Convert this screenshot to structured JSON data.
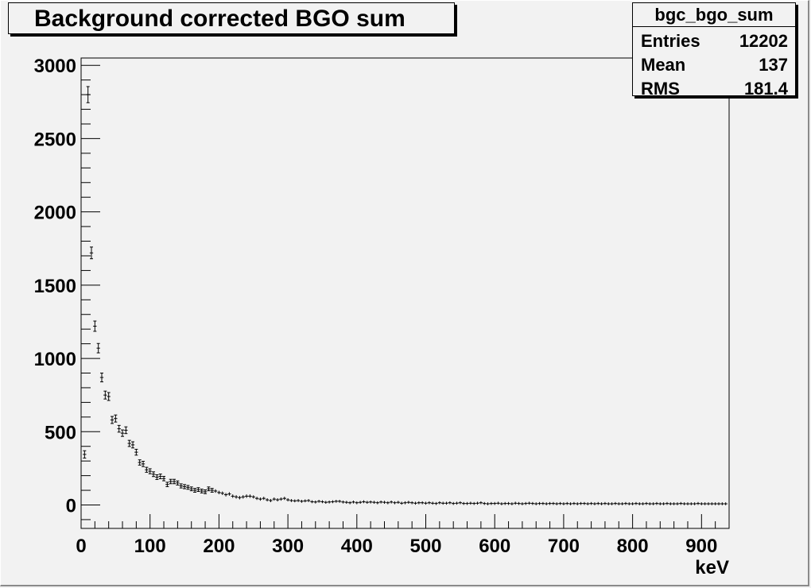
{
  "title": "Background corrected BGO sum",
  "stats": {
    "name": "bgc_bgo_sum",
    "rows": [
      {
        "key": "Entries",
        "value": "12202"
      },
      {
        "key": "Mean",
        "value": "137"
      },
      {
        "key": "RMS",
        "value": "181.4"
      }
    ]
  },
  "chart_data": {
    "type": "scatter",
    "title": "Background corrected BGO sum",
    "xlabel": "keV",
    "ylabel": "",
    "xlim": [
      0,
      940
    ],
    "ylim": [
      -160,
      3050
    ],
    "xticks": [
      0,
      100,
      200,
      300,
      400,
      500,
      600,
      700,
      800,
      900
    ],
    "yticks": [
      0,
      500,
      1000,
      1500,
      2000,
      2500,
      3000
    ],
    "xtick_labels": [
      "0",
      "100",
      "200",
      "300",
      "400",
      "500",
      "600",
      "700",
      "800",
      "900"
    ],
    "ytick_labels": [
      "0",
      "500",
      "1000",
      "1500",
      "2000",
      "2500",
      "3000"
    ],
    "grid": false,
    "bin_width": 5,
    "x": [
      5,
      10,
      15,
      20,
      25,
      30,
      35,
      40,
      45,
      50,
      55,
      60,
      65,
      70,
      75,
      80,
      85,
      90,
      95,
      100,
      105,
      110,
      115,
      120,
      125,
      130,
      135,
      140,
      145,
      150,
      155,
      160,
      165,
      170,
      175,
      180,
      185,
      190,
      195,
      200,
      205,
      210,
      215,
      220,
      225,
      230,
      235,
      240,
      245,
      250,
      255,
      260,
      265,
      270,
      275,
      280,
      285,
      290,
      295,
      300,
      305,
      310,
      315,
      320,
      325,
      330,
      335,
      340,
      345,
      350,
      355,
      360,
      365,
      370,
      375,
      380,
      385,
      390,
      395,
      400,
      405,
      410,
      415,
      420,
      425,
      430,
      435,
      440,
      445,
      450,
      455,
      460,
      465,
      470,
      475,
      480,
      485,
      490,
      495,
      500,
      505,
      510,
      515,
      520,
      525,
      530,
      535,
      540,
      545,
      550,
      555,
      560,
      565,
      570,
      575,
      580,
      585,
      590,
      595,
      600,
      605,
      610,
      615,
      620,
      625,
      630,
      635,
      640,
      645,
      650,
      655,
      660,
      665,
      670,
      675,
      680,
      685,
      690,
      695,
      700,
      705,
      710,
      715,
      720,
      725,
      730,
      735,
      740,
      745,
      750,
      755,
      760,
      765,
      770,
      775,
      780,
      785,
      790,
      795,
      800,
      805,
      810,
      815,
      820,
      825,
      830,
      835,
      840,
      845,
      850,
      855,
      860,
      865,
      870,
      875,
      880,
      885,
      890,
      895,
      900,
      905,
      910,
      915,
      920,
      925,
      930,
      935
    ],
    "y": [
      345,
      2800,
      1720,
      1220,
      1070,
      870,
      750,
      740,
      580,
      590,
      520,
      490,
      510,
      420,
      410,
      360,
      290,
      280,
      240,
      230,
      210,
      190,
      195,
      180,
      140,
      160,
      160,
      150,
      130,
      125,
      120,
      110,
      100,
      105,
      95,
      90,
      110,
      100,
      95,
      85,
      80,
      70,
      75,
      60,
      55,
      50,
      55,
      60,
      60,
      55,
      45,
      40,
      45,
      35,
      30,
      40,
      35,
      40,
      45,
      35,
      30,
      28,
      30,
      25,
      28,
      30,
      22,
      20,
      25,
      22,
      18,
      20,
      22,
      25,
      25,
      20,
      18,
      15,
      20,
      15,
      18,
      22,
      18,
      20,
      18,
      15,
      20,
      18,
      15,
      20,
      15,
      18,
      12,
      15,
      18,
      15,
      12,
      15,
      15,
      12,
      15,
      12,
      10,
      15,
      12,
      12,
      15,
      10,
      12,
      15,
      10,
      10,
      12,
      10,
      12,
      15,
      10,
      8,
      10,
      10,
      12,
      8,
      10,
      10,
      8,
      12,
      10,
      8,
      10,
      12,
      10,
      8,
      10,
      10,
      8,
      10,
      10,
      8,
      10,
      8,
      10,
      8,
      10,
      8,
      10,
      10,
      8,
      10,
      8,
      10,
      8,
      10,
      8,
      8,
      10,
      8,
      8,
      10,
      8,
      8,
      10,
      8,
      8,
      10,
      8,
      8,
      10,
      8,
      8,
      10,
      8,
      8,
      8,
      10,
      8,
      8,
      8,
      8,
      10,
      8,
      8,
      8,
      8,
      8,
      8,
      8,
      8
    ],
    "errors": [
      25,
      55,
      40,
      35,
      32,
      30,
      27,
      27,
      24,
      24,
      23,
      22,
      23,
      21,
      21,
      20,
      18,
      18,
      17,
      17,
      16,
      16,
      16,
      15,
      15,
      15,
      15,
      14,
      14,
      14,
      13,
      13,
      13,
      13,
      13,
      13,
      13,
      13,
      12,
      12,
      12,
      12,
      12,
      12,
      12,
      12,
      12,
      12,
      12,
      11,
      11,
      11,
      11,
      11,
      11,
      11,
      11,
      11,
      11,
      11,
      10,
      10,
      10,
      10,
      10,
      10,
      10,
      10,
      10,
      10,
      10,
      10,
      10,
      10,
      10,
      10,
      10,
      10,
      10,
      10,
      10,
      10,
      10,
      10,
      10,
      10,
      10,
      10,
      10,
      10,
      10,
      10,
      10,
      10,
      10,
      10,
      10,
      10,
      10,
      10,
      10,
      10,
      10,
      10,
      10,
      10,
      10,
      10,
      10,
      10,
      10,
      10,
      10,
      10,
      10,
      10,
      10,
      10,
      10,
      10,
      10,
      10,
      10,
      10,
      10,
      10,
      10,
      10,
      10,
      10,
      10,
      10,
      10,
      10,
      10,
      10,
      10,
      10,
      10,
      10,
      10,
      10,
      10,
      10,
      10,
      10,
      10,
      10,
      10,
      10,
      10,
      10,
      10,
      10,
      10,
      10,
      10,
      10,
      10,
      10,
      10,
      10,
      10,
      10,
      10,
      10,
      10,
      10,
      10,
      10,
      10,
      10,
      10,
      10,
      10,
      10,
      10,
      10,
      10,
      10,
      10,
      10,
      10,
      10,
      10,
      10,
      10
    ]
  }
}
